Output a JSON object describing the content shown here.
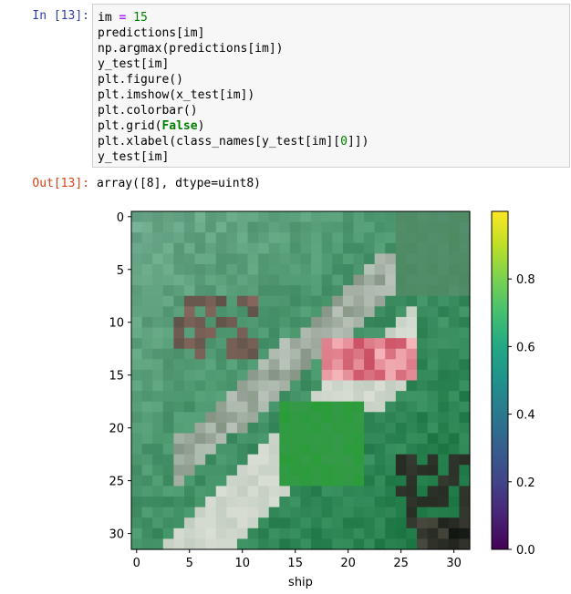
{
  "cell": {
    "in_prompt": "In [13]:",
    "out_prompt": "Out[13]:",
    "output_text": "array([8], dtype=uint8)"
  },
  "code": {
    "line1": {
      "var": "im",
      "op": "=",
      "num": "15"
    },
    "line2": "predictions[im]",
    "line3": "np.argmax(predictions[im])",
    "line4": "y_test[im]",
    "line5": "plt.figure()",
    "line6": "plt.imshow(x_test[im])",
    "line7": "plt.colorbar()",
    "line8": {
      "pre": "plt.grid(",
      "kw": "False",
      "post": ")"
    },
    "line9": {
      "pre": "plt.xlabel(class_names[y_test[im][",
      "num": "0",
      "post": "]])"
    },
    "line10": "y_test[im]"
  },
  "chart_data": {
    "type": "heatmap",
    "xlabel": "ship",
    "ylabel": "",
    "x_ticks": [
      "0",
      "5",
      "10",
      "15",
      "20",
      "25",
      "30"
    ],
    "y_ticks": [
      "0",
      "5",
      "10",
      "15",
      "20",
      "25",
      "30"
    ],
    "xlim": [
      -0.5,
      31.5
    ],
    "ylim": [
      31.5,
      -0.5
    ],
    "image_size": [
      32,
      32
    ],
    "grid": false,
    "colorbar": {
      "colormap": "viridis",
      "range": [
        0.0,
        1.0
      ],
      "ticks": [
        "0.0",
        "0.2",
        "0.4",
        "0.6",
        "0.8"
      ]
    }
  }
}
